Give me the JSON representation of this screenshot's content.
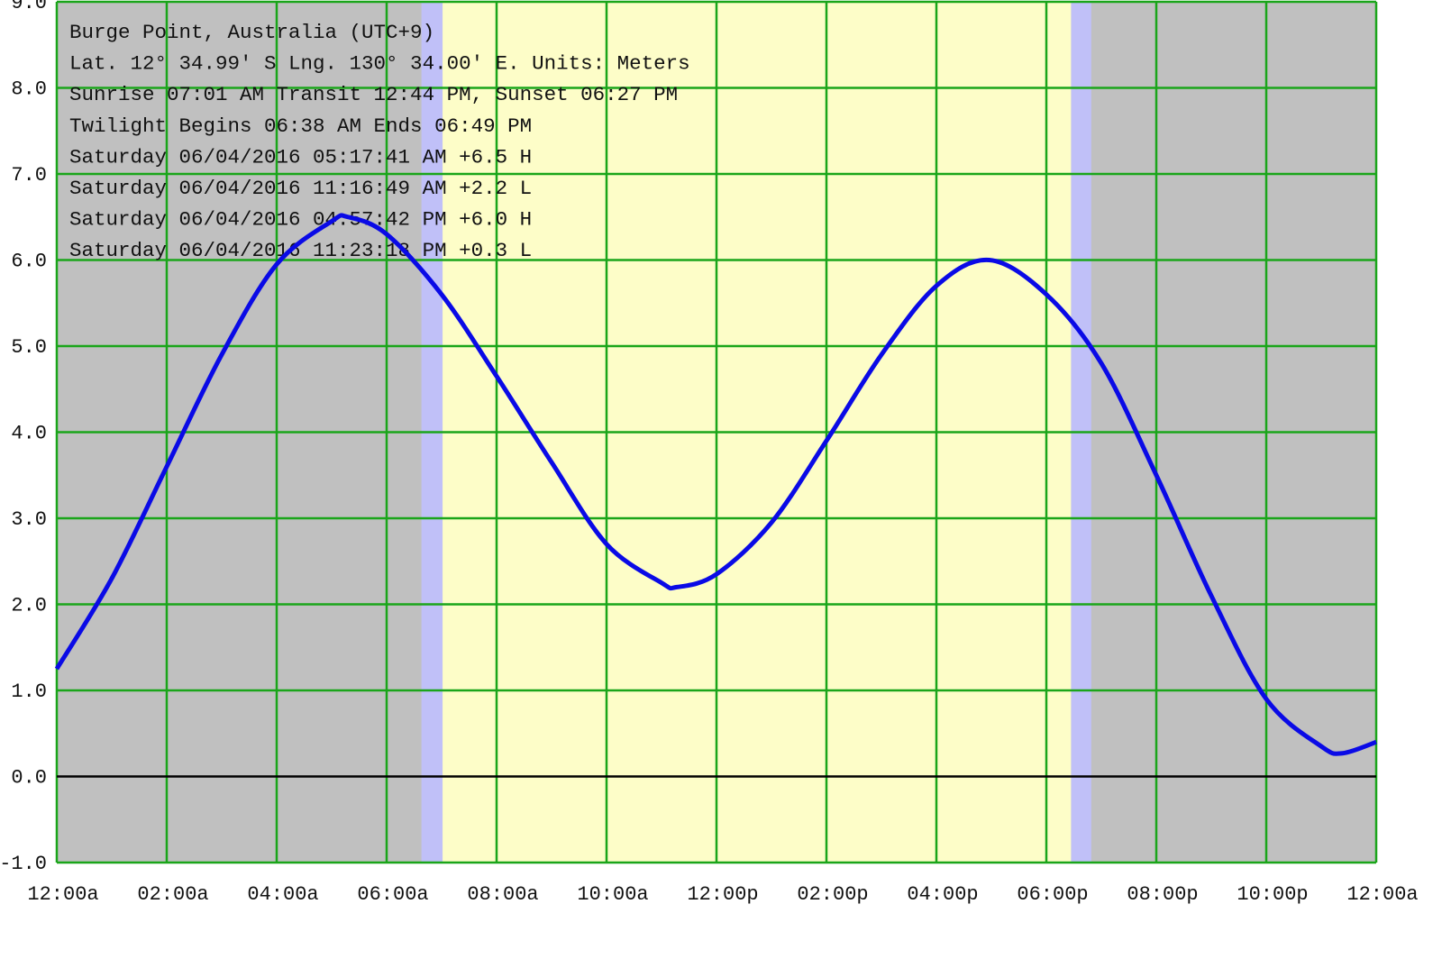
{
  "chart_data": {
    "type": "line",
    "title": "",
    "xlabel": "",
    "ylabel": "",
    "info_lines": [
      "Burge Point, Australia (UTC+9)",
      "Lat. 12° 34.99' S Lng. 130° 34.00' E. Units: Meters",
      "Sunrise 07:01 AM  Transit 12:44 PM, Sunset 06:27 PM",
      "Twilight Begins 06:38 AM  Ends 06:49 PM",
      "Saturday 06/04/2016 05:17:41 AM  +6.5 H",
      "Saturday 06/04/2016 11:16:49 AM  +2.2 L",
      "Saturday 06/04/2016 04:57:42 PM  +6.0 H",
      "Saturday 06/04/2016 11:23:18 PM  +0.3 L"
    ],
    "xlim_hours": [
      0,
      24
    ],
    "ylim": [
      -1.0,
      9.0
    ],
    "x_ticks": [
      "12:00a",
      "02:00a",
      "04:00a",
      "06:00a",
      "08:00a",
      "10:00a",
      "12:00p",
      "02:00p",
      "04:00p",
      "06:00p",
      "08:00p",
      "10:00p",
      "12:00a"
    ],
    "y_ticks": [
      "9.0",
      "8.0",
      "7.0",
      "6.0",
      "5.0",
      "4.0",
      "3.0",
      "2.0",
      "1.0",
      "0.0",
      "-1.0"
    ],
    "grid": true,
    "shading": {
      "night_color": "#c0c0c0",
      "day_color": "#fdfdc8",
      "twilight_color": "#c0c0f8",
      "morning_twilight_hours": [
        6.633,
        7.017
      ],
      "evening_twilight_hours": [
        18.45,
        18.817
      ]
    },
    "colors": {
      "curve": "#0a0ae6",
      "grid": "#1aa51a",
      "zero_line": "#000000"
    },
    "series": [
      {
        "x_hours": [
          0,
          1,
          2,
          3,
          4,
          5,
          5.295,
          6,
          7,
          8,
          9,
          10,
          11,
          11.28,
          12,
          13,
          14,
          15,
          16,
          16.962,
          18,
          19,
          20,
          21,
          22,
          23,
          23.388,
          24
        ],
        "y": [
          1.25,
          2.3,
          3.6,
          4.9,
          5.95,
          6.45,
          6.5,
          6.3,
          5.6,
          4.65,
          3.65,
          2.7,
          2.25,
          2.2,
          2.35,
          2.95,
          3.9,
          4.9,
          5.7,
          6.0,
          5.6,
          4.8,
          3.5,
          2.1,
          0.9,
          0.35,
          0.27,
          0.4
        ]
      }
    ]
  }
}
